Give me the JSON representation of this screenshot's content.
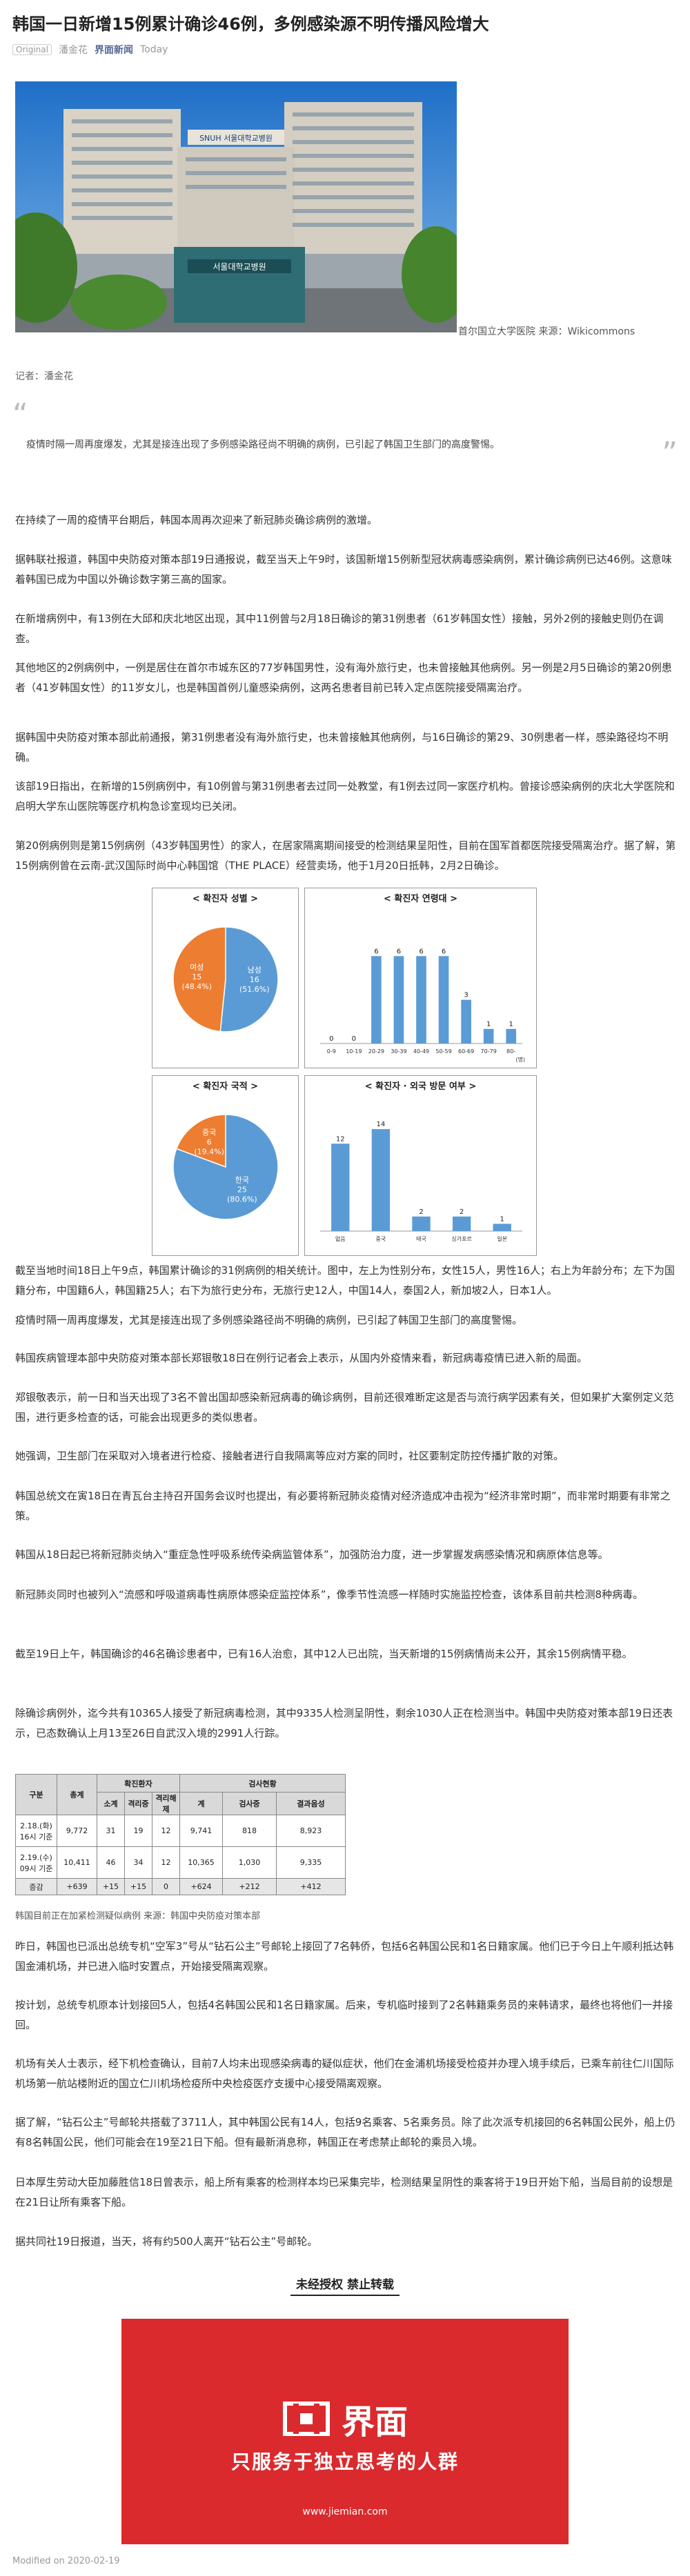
{
  "article": {
    "title": "韩国一日新增15例累计确诊46例，多例感染源不明传播风险增大",
    "original_tag": "Original",
    "author_meta": "潘金花",
    "account": "界面新闻",
    "date_meta": "Today",
    "image_caption": "首尔国立大学医院 来源：Wikicommons",
    "reporter": "记者：潘金花",
    "quote": "疫情时隔一周再度爆发，尤其是接连出现了多例感染路径尚不明确的病例，已引起了韩国卫生部门的高度警惕。",
    "paragraphs": [
      "在持续了一周的疫情平台期后，韩国本周再次迎来了新冠肺炎确诊病例的激增。",
      "据韩联社报道，韩国中央防疫对策本部19日通报说，截至当天上午9时，该国新增15例新型冠状病毒感染病例，累计确诊病例已达46例。这意味着韩国已成为中国以外确诊数字第三高的国家。",
      "在新增病例中，有13例在大邱和庆北地区出现，其中11例曾与2月18日确诊的第31例患者（61岁韩国女性）接触，另外2例的接触史则仍在调查。",
      "其他地区的2例病例中，一例是居住在首尔市城东区的77岁韩国男性，没有海外旅行史，也未曾接触其他病例。另一例是2月5日确诊的第20例患者（41岁韩国女性）的11岁女儿，也是韩国首例儿童感染病例，这两名患者目前已转入定点医院接受隔离治疗。",
      "据韩国中央防疫对策本部此前通报，第31例患者没有海外旅行史，也未曾接触其他病例，与16日确诊的第29、30例患者一样，感染路径均不明确。",
      "该部19日指出，在新增的15例病例中，有10例曾与第31例患者去过同一处教堂，有1例去过同一家医疗机构。曾接诊感染病例的庆北大学医院和启明大学东山医院等医疗机构急诊室现均已关闭。",
      "第20例病例则是第15例病例（43岁韩国男性）的家人，在居家隔离期间接受的检测结果呈阳性，目前在国军首都医院接受隔离治疗。据了解，第15例病例曾在云南-武汉国际时尚中心韩国馆（THE PLACE）经营卖场，他于1月20日抵韩，2月2日确诊。"
    ],
    "paragraphs2": [
      "截至当地时间18日上午9点，韩国累计确诊的31例病例的相关统计。图中，左上为性别分布，女性15人，男性16人；右上为年龄分布；左下为国籍分布，中国籍6人，韩国籍25人；右下为旅行史分布，无旅行史12人，中国14人，泰国2人，新加坡2人，日本1人。",
      "疫情时隔一周再度爆发，尤其是接连出现了多例感染路径尚不明确的病例，已引起了韩国卫生部门的高度警惕。",
      "韩国疾病管理本部中央防疫对策本部长郑银敬18日在例行记者会上表示，从国内外疫情来看，新冠病毒疫情已进入新的局面。",
      "郑银敬表示，前一日和当天出现了3名不曾出国却感染新冠病毒的确诊病例，目前还很难断定这是否与流行病学因素有关，但如果扩大案例定义范围，进行更多检查的话，可能会出现更多的类似患者。",
      "她强调，卫生部门在采取对入境者进行检疫、接触者进行自我隔离等应对方案的同时，社区要制定防控传播扩散的对策。",
      "韩国总统文在寅18日在青瓦台主持召开国务会议时也提出，有必要将新冠肺炎疫情对经济造成冲击视为“经济非常时期”，而非常时期要有非常之策。",
      "韩国从18日起已将新冠肺炎纳入“重症急性呼吸系统传染病监管体系”，加强防治力度，进一步掌握发病感染情况和病原体信息等。",
      "新冠肺炎同时也被列入“流感和呼吸道病毒性病原体感染症监控体系”，像季节性流感一样随时实施监控检查，该体系目前共检测8种病毒。",
      "截至19日上午，韩国确诊的46名确诊患者中，已有16人治愈，其中12人已出院，当天新增的15例病情尚未公开，其余15例病情平稳。",
      "除确诊病例外，迄今共有10365人接受了新冠病毒检测，其中9335人检测呈阴性，剩余1030人正在检测当中。韩国中央防疫对策本部19日还表示，已态数确认上月13至26日自武汉入境的2991人行踪。"
    ],
    "table_caption": "韩国目前正在加紧检测疑似病例 来源：韩国中央防疫对策本部",
    "paragraphs3": [
      "昨日，韩国也已派出总统专机“空军3”号从“钻石公主”号邮轮上接回了7名韩侨，包括6名韩国公民和1名日籍家属。他们已于今日上午顺利抵达韩国金浦机场，并已进入临时安置点，开始接受隔离观察。",
      "按计划，总统专机原本计划接回5人，包括4名韩国公民和1名日籍家属。后来，专机临时接到了2名韩籍乘务员的来韩请求，最终也将他们一并接回。",
      "机场有关人士表示，经下机检查确认，目前7人均未出现感染病毒的疑似症状，他们在金浦机场接受检疫并办理入境手续后，已乘车前往仁川国际机场第一航站楼附近的国立仁川机场检疫所中央检疫医疗支援中心接受隔离观察。",
      "据了解，“钻石公主”号邮轮共搭载了3711人，其中韩国公民有14人，包括9名乘客、5名乘务员。除了此次派专机接回的6名韩国公民外，船上仍有8名韩国公民，他们可能会在19至21日下船。但有最新消息称，韩国正在考虑禁止邮轮的乘员入境。",
      "日本厚生劳动大臣加藤胜信18日曾表示，船上所有乘客的检测样本均已采集完毕，检测结果呈阴性的乘客将于19日开始下船，当局目前的设想是在21日让所有乘客下船。",
      "据共同社19日报道，当天，将有约500人离开“钻石公主”号邮轮。"
    ],
    "rights_notice": "未经授权 禁止转载",
    "publish_date": "Modified on 2020-02-19"
  },
  "hero_image": {
    "sign_text": "서울대학교병원",
    "sign_sub": "SNUH 서울대학교병원"
  },
  "charts": {
    "gender": {
      "title": "< 확진자 성별 >",
      "slices": [
        {
          "label": "여성",
          "count": "15",
          "pct": "(48.4%)",
          "value": 15,
          "color": "#ed7d31"
        },
        {
          "label": "남성",
          "count": "16",
          "pct": "(51.6%)",
          "value": 16,
          "color": "#5b9bd5"
        }
      ]
    },
    "age": {
      "title": "< 확진자 연령대 >",
      "categories": [
        "0-9",
        "10-19",
        "20-29",
        "30-39",
        "40-49",
        "50-59",
        "60-69",
        "70-79",
        "80-"
      ],
      "values": [
        0,
        0,
        6,
        6,
        6,
        6,
        3,
        1,
        1
      ],
      "unit": "(명)",
      "color": "#5b9bd5"
    },
    "nationality": {
      "title": "< 확진자 국적 >",
      "slices": [
        {
          "label": "중국",
          "count": "6",
          "pct": "(19.4%)",
          "value": 6,
          "color": "#ed7d31"
        },
        {
          "label": "한국",
          "count": "25",
          "pct": "(80.6%)",
          "value": 25,
          "color": "#5b9bd5"
        }
      ]
    },
    "travel": {
      "title": "< 확진자 · 외국 방문 여부 >",
      "categories": [
        "없음",
        "중국",
        "태국",
        "싱가포르",
        "일본"
      ],
      "values": [
        12,
        14,
        2,
        2,
        1
      ],
      "color": "#5b9bd5"
    }
  },
  "chart_data": [
    {
      "type": "pie",
      "title": "< 확진자 성별 >",
      "labels": [
        "여성",
        "남성"
      ],
      "values": [
        15,
        16
      ]
    },
    {
      "type": "bar",
      "title": "< 확진자 연령대 >",
      "categories": [
        "0-9",
        "10-19",
        "20-29",
        "30-39",
        "40-49",
        "50-59",
        "60-69",
        "70-79",
        "80-"
      ],
      "values": [
        0,
        0,
        6,
        6,
        6,
        6,
        3,
        1,
        1
      ]
    },
    {
      "type": "pie",
      "title": "< 확진자 국적 >",
      "labels": [
        "중국",
        "한국"
      ],
      "values": [
        6,
        25
      ]
    },
    {
      "type": "bar",
      "title": "< 확진자 · 외국 방문 여부 >",
      "categories": [
        "없음",
        "중국",
        "태국",
        "싱가포르",
        "일본"
      ],
      "values": [
        12,
        14,
        2,
        2,
        1
      ]
    }
  ],
  "table": {
    "h_group": "구분",
    "h_total": "총계",
    "h_confirm": "확진환자",
    "h_confirm_sub": [
      "소계",
      "격리중",
      "격리해제"
    ],
    "h_test": "검사현황",
    "h_test_sub": [
      "계",
      "검사중",
      "결과음성"
    ],
    "rows": [
      {
        "label": "2.18.(화)\n16시 기준",
        "cells": [
          "9,772",
          "31",
          "19",
          "12",
          "9,741",
          "818",
          "8,923"
        ]
      },
      {
        "label": "2.19.(수)\n09시 기준",
        "cells": [
          "10,411",
          "46",
          "34",
          "12",
          "10,365",
          "1,030",
          "9,335"
        ]
      },
      {
        "label": "증감",
        "cells": [
          "+639",
          "+15",
          "+15",
          "0",
          "+624",
          "+212",
          "+412"
        ]
      }
    ]
  },
  "banner": {
    "logo_text": "界面",
    "slogan": "只服务于独立思考的人群",
    "url": "www.jiemian.com",
    "color": "#da2a2e"
  }
}
